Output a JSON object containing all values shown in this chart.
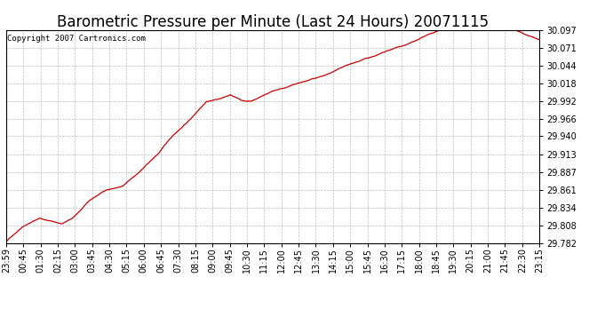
{
  "title": "Barometric Pressure per Minute (Last 24 Hours) 20071115",
  "copyright_text": "Copyright 2007 Cartronics.com",
  "line_color": "#cc0000",
  "background_color": "#ffffff",
  "plot_bg_color": "#ffffff",
  "grid_color": "#bbbbbb",
  "yticks": [
    29.782,
    29.808,
    29.834,
    29.861,
    29.887,
    29.913,
    29.94,
    29.966,
    29.992,
    30.018,
    30.044,
    30.071,
    30.097
  ],
  "ymin": 29.782,
  "ymax": 30.097,
  "xtick_labels": [
    "23:59",
    "00:45",
    "01:30",
    "02:15",
    "03:00",
    "03:45",
    "04:30",
    "05:15",
    "06:00",
    "06:45",
    "07:30",
    "08:15",
    "09:00",
    "09:45",
    "10:30",
    "11:15",
    "12:00",
    "12:45",
    "13:30",
    "14:15",
    "15:00",
    "15:45",
    "16:30",
    "17:15",
    "18:00",
    "18:45",
    "19:30",
    "20:15",
    "21:00",
    "21:45",
    "22:30",
    "23:15"
  ],
  "title_fontsize": 12,
  "tick_fontsize": 7,
  "copyright_fontsize": 6.5,
  "anchors_x": [
    0,
    46,
    90,
    120,
    150,
    180,
    225,
    270,
    315,
    360,
    410,
    450,
    500,
    540,
    580,
    605,
    635,
    660,
    690,
    720,
    780,
    860,
    930,
    1000,
    1080,
    1140,
    1200,
    1260,
    1310,
    1355,
    1400,
    1439
  ],
  "anchors_y": [
    29.784,
    29.808,
    29.82,
    29.816,
    29.812,
    29.82,
    29.845,
    29.861,
    29.866,
    29.887,
    29.913,
    29.94,
    29.966,
    29.992,
    29.997,
    30.002,
    29.993,
    29.992,
    30.0,
    30.008,
    30.018,
    30.03,
    30.044,
    30.057,
    30.071,
    30.084,
    30.097,
    30.097,
    30.091,
    30.097,
    30.084,
    30.075
  ]
}
